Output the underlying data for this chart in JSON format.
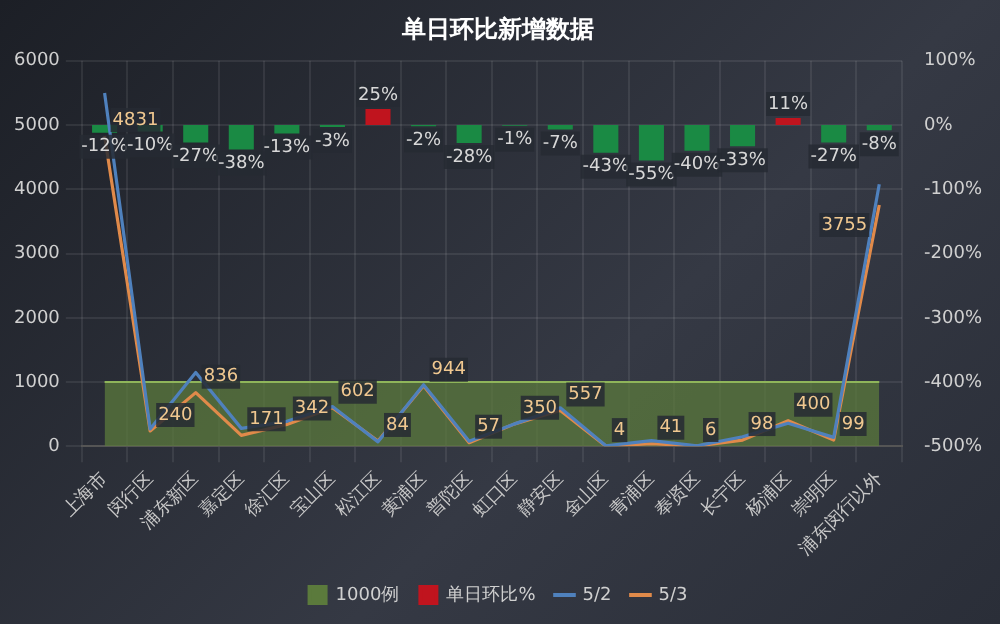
{
  "chart_data": {
    "type": "line",
    "title": "单日环比新增数据",
    "categories": [
      "上海市",
      "闵行区",
      "浦东新区",
      "嘉定区",
      "徐汇区",
      "宝山区",
      "松江区",
      "黄浦区",
      "普陀区",
      "虹口区",
      "静安区",
      "金山区",
      "青浦区",
      "奉贤区",
      "长宁区",
      "杨浦区",
      "崇明区",
      "浦东闵行以外"
    ],
    "series": [
      {
        "name": "1000例",
        "type": "area",
        "color": "#5b7a3c",
        "values": [
          1000,
          1000,
          1000,
          1000,
          1000,
          1000,
          1000,
          1000,
          1000,
          1000,
          1000,
          1000,
          1000,
          1000,
          1000,
          1000,
          1000,
          1000
        ]
      },
      {
        "name": "单日环比%",
        "type": "bar",
        "axis": "y2",
        "color": "#c0141e",
        "colors": [
          "#1a8a44",
          "#1a8a44",
          "#1a8a44",
          "#1a8a44",
          "#1a8a44",
          "#1a8a44",
          "#c0141e",
          "#1a8a44",
          "#1a8a44",
          "#1a8a44",
          "#1a8a44",
          "#1a8a44",
          "#1a8a44",
          "#1a8a44",
          "#1a8a44",
          "#c0141e",
          "#1a8a44",
          "#1a8a44"
        ],
        "values": [
          -12,
          -10,
          -27,
          -38,
          -13,
          -3,
          25,
          -2,
          -28,
          -1,
          -7,
          -43,
          -55,
          -40,
          -33,
          11,
          -27,
          -8
        ],
        "value_labels": [
          "-12%",
          "-10%",
          "-27%",
          "-38%",
          "-13%",
          "-3%",
          "25%",
          "-2%",
          "-28%",
          "-1%",
          "-7%",
          "-43%",
          "-55%",
          "-40%",
          "-33%",
          "11%",
          "-27%",
          "-8%"
        ]
      },
      {
        "name": "5/2",
        "color": "#4f81bd",
        "values": [
          5500,
          270,
          1150,
          280,
          390,
          620,
          70,
          960,
          80,
          350,
          600,
          10,
          90,
          10,
          150,
          360,
          140,
          4080
        ]
      },
      {
        "name": "5/3",
        "color": "#e08a4a",
        "values": [
          4831,
          240,
          836,
          171,
          342,
          602,
          84,
          944,
          57,
          350,
          557,
          4,
          41,
          6,
          98,
          400,
          99,
          3755
        ],
        "value_labels": [
          "4831",
          "240",
          "836",
          "171",
          "342",
          "602",
          "84",
          "944",
          "57",
          "350",
          "557",
          "4",
          "41",
          "6",
          "98",
          "400",
          "99",
          "3755"
        ]
      }
    ],
    "ylim": [
      0,
      6000
    ],
    "yticks": [
      0,
      1000,
      2000,
      3000,
      4000,
      5000,
      6000
    ],
    "y2lim": [
      -500,
      100
    ],
    "y2ticks": [
      {
        "value": -500,
        "label": "-500%"
      },
      {
        "value": -400,
        "label": "-400%"
      },
      {
        "value": -300,
        "label": "-300%"
      },
      {
        "value": -200,
        "label": "-200%"
      },
      {
        "value": -100,
        "label": "-100%"
      },
      {
        "value": 0,
        "label": "0%"
      },
      {
        "value": 100,
        "label": "100%"
      }
    ],
    "grid": true,
    "legend": "bottom",
    "marker": "none",
    "line_style": "solid"
  }
}
